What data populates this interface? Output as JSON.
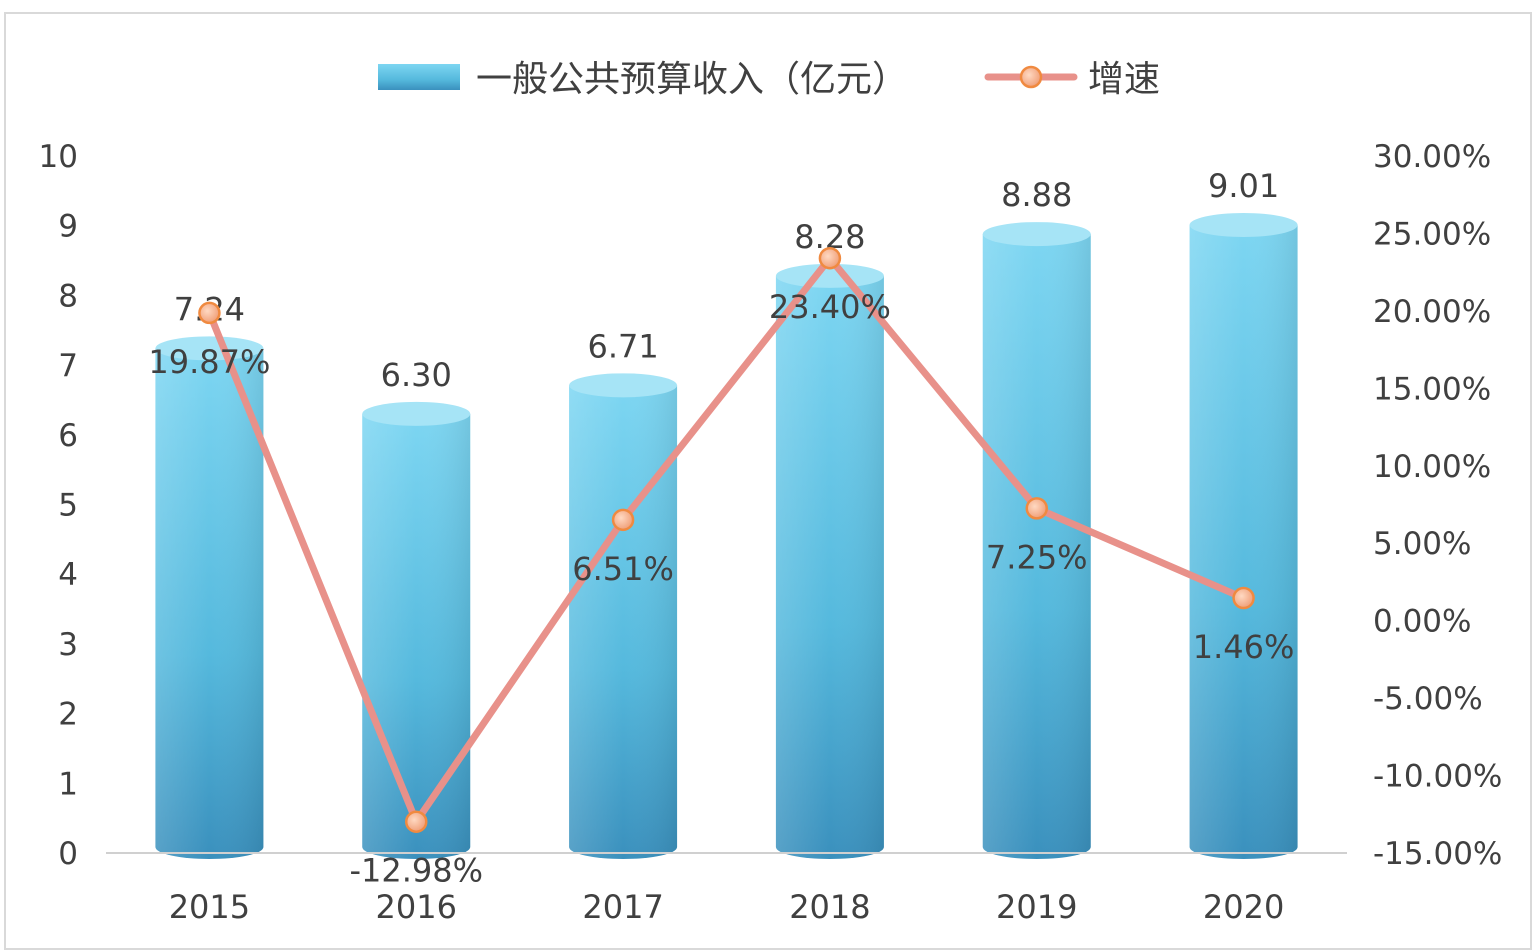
{
  "chart_data": {
    "type": "bar",
    "categories": [
      "2015",
      "2016",
      "2017",
      "2018",
      "2019",
      "2020"
    ],
    "series": [
      {
        "name": "一般公共预算收入（亿元）",
        "type": "bar",
        "axis": "left",
        "values": [
          7.24,
          6.3,
          6.71,
          8.28,
          8.88,
          9.01
        ],
        "labels": [
          "7.24",
          "6.30",
          "6.71",
          "8.28",
          "8.88",
          "9.01"
        ],
        "color": "#4fb8dc"
      },
      {
        "name": "增速",
        "type": "line",
        "axis": "right",
        "values": [
          19.87,
          -12.98,
          6.51,
          23.4,
          7.25,
          1.46
        ],
        "labels": [
          "19.87%",
          "-12.98%",
          "6.51%",
          "23.40%",
          "7.25%",
          "1.46%"
        ],
        "color": "#e8918a",
        "marker_color": "#f08a40"
      }
    ],
    "y_left": {
      "ylim": [
        0,
        10
      ],
      "ticks": [
        "0",
        "1",
        "2",
        "3",
        "4",
        "5",
        "6",
        "7",
        "8",
        "9",
        "10"
      ]
    },
    "y_right": {
      "ylim": [
        -15,
        30
      ],
      "ticks": [
        "-15.00%",
        "-10.00%",
        "-5.00%",
        "0.00%",
        "5.00%",
        "10.00%",
        "15.00%",
        "20.00%",
        "25.00%",
        "30.00%"
      ]
    },
    "grid": false,
    "legend": "top"
  }
}
